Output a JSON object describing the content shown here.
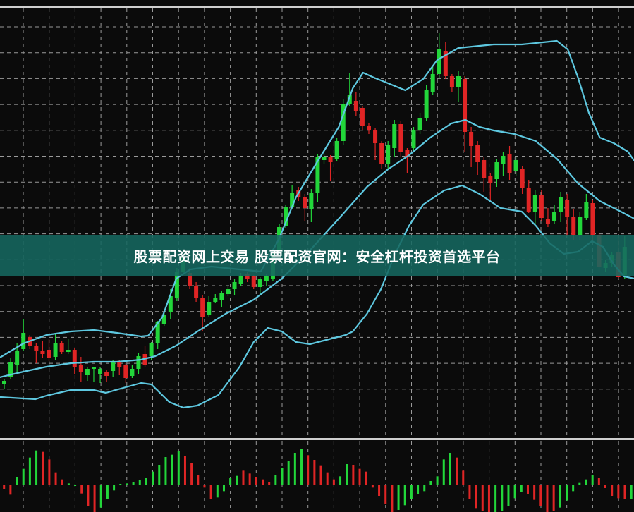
{
  "banner": {
    "text": "股票配资网上交易 股票配资官网：安全杠杆投资首选平台"
  },
  "colors": {
    "background": "#0b0b0b",
    "grid": "#9a9a9a",
    "up": "#22d63a",
    "down": "#e02525",
    "band": "#5ec8e0",
    "divider": "#cfcfcf",
    "banner": "#16685f"
  },
  "chart_data": [
    {
      "type": "candlestick",
      "title": "",
      "grid": true,
      "ohlc": [
        [
          5.5,
          6.2,
          4.9,
          6.0
        ],
        [
          6.5,
          9.2,
          6.2,
          8.7
        ],
        [
          8.3,
          11.3,
          7.2,
          10.3
        ],
        [
          10.5,
          14.7,
          10.3,
          12.8
        ],
        [
          12.2,
          12.5,
          10.5,
          11.0
        ],
        [
          11.0,
          11.3,
          8.5,
          10.2
        ],
        [
          10.2,
          11.7,
          9.2,
          9.8
        ],
        [
          10.4,
          11.9,
          8.8,
          9.2
        ],
        [
          9.4,
          12.6,
          9.0,
          11.3
        ],
        [
          11.4,
          11.7,
          9.8,
          10.1
        ],
        [
          10.1,
          12.0,
          9.8,
          10.4
        ],
        [
          10.4,
          10.7,
          7.0,
          8.0
        ],
        [
          8.3,
          9.4,
          5.8,
          7.2
        ],
        [
          6.8,
          8.0,
          6.0,
          7.7
        ],
        [
          7.7,
          8.0,
          5.8,
          7.9
        ],
        [
          7.0,
          8.0,
          5.7,
          7.7
        ],
        [
          7.3,
          7.6,
          5.8,
          6.7
        ],
        [
          7.4,
          9.0,
          6.5,
          8.7
        ],
        [
          8.7,
          9.0,
          6.8,
          8.0
        ],
        [
          8.3,
          8.5,
          5.7,
          6.4
        ],
        [
          6.7,
          8.2,
          6.4,
          7.7
        ],
        [
          7.7,
          10.0,
          7.0,
          9.5
        ],
        [
          9.8,
          11.0,
          8.0,
          8.3
        ],
        [
          9.5,
          11.5,
          9.0,
          11.3
        ],
        [
          11.3,
          14.5,
          10.5,
          14.3
        ],
        [
          14.0,
          16.0,
          13.8,
          15.3
        ],
        [
          15.7,
          19.0,
          14.7,
          18.0
        ],
        [
          17.7,
          22.0,
          17.3,
          21.5
        ],
        [
          21.5,
          24.0,
          21.2,
          23.5
        ],
        [
          21.3,
          22.0,
          19.0,
          19.5
        ],
        [
          19.5,
          20.0,
          17.2,
          17.7
        ],
        [
          17.8,
          18.2,
          13.0,
          15.0
        ],
        [
          15.3,
          18.0,
          15.0,
          17.2
        ],
        [
          17.2,
          18.3,
          17.0,
          17.8
        ],
        [
          17.5,
          18.8,
          16.5,
          18.4
        ],
        [
          18.3,
          19.5,
          18.0,
          19.0
        ],
        [
          19.0,
          20.5,
          18.2,
          20.0
        ],
        [
          19.7,
          21.3,
          19.4,
          20.8
        ],
        [
          21.2,
          21.5,
          20.0,
          20.5
        ],
        [
          20.8,
          21.0,
          19.0,
          19.3
        ],
        [
          19.3,
          20.7,
          18.2,
          20.5
        ],
        [
          20.2,
          21.2,
          19.5,
          20.8
        ],
        [
          20.5,
          24.5,
          20.2,
          24.0
        ],
        [
          24.3,
          28.2,
          24.0,
          27.8
        ],
        [
          28.0,
          31.0,
          27.7,
          30.7
        ],
        [
          30.7,
          33.8,
          30.4,
          32.7
        ],
        [
          33.0,
          33.5,
          31.5,
          32.0
        ],
        [
          32.0,
          32.5,
          28.7,
          30.5
        ],
        [
          30.3,
          33.2,
          28.5,
          32.7
        ],
        [
          32.7,
          38.2,
          31.3,
          37.7
        ],
        [
          37.3,
          38.2,
          36.8,
          37.8
        ],
        [
          37.8,
          38.0,
          34.3,
          37.0
        ],
        [
          37.5,
          40.5,
          37.2,
          40.0
        ],
        [
          40.0,
          46.0,
          39.5,
          45.3
        ],
        [
          45.3,
          49.7,
          45.0,
          46.5
        ],
        [
          45.7,
          47.0,
          43.5,
          44.3
        ],
        [
          44.7,
          45.0,
          41.5,
          42.2
        ],
        [
          42.1,
          42.5,
          41.0,
          41.5
        ],
        [
          41.5,
          41.8,
          37.3,
          39.7
        ],
        [
          39.7,
          40.0,
          36.0,
          36.7
        ],
        [
          36.7,
          40.0,
          36.0,
          39.4
        ],
        [
          39.0,
          43.0,
          37.8,
          42.4
        ],
        [
          42.4,
          42.8,
          37.8,
          38.5
        ],
        [
          38.8,
          39.0,
          35.5,
          37.8
        ],
        [
          39.0,
          42.0,
          38.5,
          41.5
        ],
        [
          41.5,
          44.0,
          41.0,
          43.3
        ],
        [
          43.3,
          48.0,
          42.8,
          47.3
        ],
        [
          47.0,
          50.7,
          46.5,
          49.5
        ],
        [
          49.5,
          55.3,
          49.0,
          53.1
        ],
        [
          52.7,
          54.0,
          48.8,
          49.2
        ],
        [
          49.2,
          49.5,
          47.0,
          47.7
        ],
        [
          47.7,
          50.0,
          45.5,
          49.2
        ],
        [
          48.8,
          49.2,
          38.5,
          41.3
        ],
        [
          41.3,
          42.0,
          36.3,
          39.3
        ],
        [
          39.5,
          40.0,
          35.2,
          37.0
        ],
        [
          37.3,
          37.8,
          32.8,
          34.8
        ],
        [
          35.0,
          35.5,
          31.5,
          34.0
        ],
        [
          34.6,
          37.5,
          33.5,
          37.0
        ],
        [
          36.7,
          38.5,
          35.0,
          37.9
        ],
        [
          38.2,
          39.3,
          34.5,
          35.5
        ],
        [
          35.7,
          37.8,
          35.0,
          37.3
        ],
        [
          36.1,
          36.4,
          32.5,
          33.3
        ],
        [
          33.3,
          34.5,
          29.8,
          30.0
        ],
        [
          30.0,
          33.0,
          28.0,
          32.4
        ],
        [
          32.4,
          33.0,
          28.6,
          29.1
        ],
        [
          29.0,
          30.5,
          27.8,
          28.3
        ],
        [
          28.7,
          31.0,
          28.2,
          29.9
        ],
        [
          30.0,
          32.8,
          28.5,
          32.0
        ],
        [
          31.7,
          32.5,
          26.5,
          29.3
        ],
        [
          29.3,
          30.3,
          26.0,
          26.7
        ],
        [
          26.7,
          30.0,
          26.0,
          29.3
        ],
        [
          29.1,
          32.5,
          28.8,
          31.4
        ],
        [
          31.2,
          31.7,
          25.5,
          26.7
        ],
        [
          26.7,
          27.0,
          21.5,
          22.2
        ],
        [
          22.0,
          23.2,
          21.5,
          22.7
        ],
        [
          22.7,
          24.2,
          22.2,
          23.8
        ],
        [
          24.2,
          26.5,
          20.4,
          20.7
        ],
        [
          21.0,
          26.5,
          20.5,
          25.0
        ]
      ],
      "bands": {
        "upper": [
          [
            -0.7,
            9.3
          ],
          [
            3.0,
            11.3
          ],
          [
            6.6,
            12.5
          ],
          [
            10.4,
            13.0
          ],
          [
            14.0,
            13.2
          ],
          [
            17.6,
            12.8
          ],
          [
            21.4,
            12.3
          ],
          [
            22.5,
            12.4
          ],
          [
            24.7,
            15.0
          ],
          [
            26.9,
            20.5
          ],
          [
            29.1,
            21.8
          ],
          [
            32.4,
            22.2
          ],
          [
            36.8,
            21.8
          ],
          [
            40.1,
            21.5
          ],
          [
            42.9,
            26.0
          ],
          [
            45.6,
            32.0
          ],
          [
            48.9,
            37.0
          ],
          [
            52.3,
            42.0
          ],
          [
            54.5,
            47.5
          ],
          [
            56.1,
            49.7
          ],
          [
            57.8,
            49.0
          ],
          [
            60.0,
            48.2
          ],
          [
            62.7,
            47.2
          ],
          [
            65.5,
            48.8
          ],
          [
            67.7,
            51.5
          ],
          [
            71.0,
            53.2
          ],
          [
            76.5,
            53.7
          ],
          [
            80.9,
            53.7
          ],
          [
            84.2,
            54.0
          ],
          [
            86.4,
            54.2
          ],
          [
            88.1,
            53.0
          ],
          [
            89.7,
            49.0
          ],
          [
            91.4,
            44.0
          ],
          [
            93.1,
            40.5
          ],
          [
            95.3,
            39.7
          ],
          [
            97.5,
            38.5
          ],
          [
            98.5,
            37.2
          ]
        ],
        "middle": [
          [
            -0.7,
            6.5
          ],
          [
            3.0,
            7.3
          ],
          [
            6.6,
            8.0
          ],
          [
            10.4,
            8.5
          ],
          [
            14.0,
            8.7
          ],
          [
            17.6,
            8.7
          ],
          [
            21.4,
            9.0
          ],
          [
            23.6,
            9.5
          ],
          [
            26.9,
            11.0
          ],
          [
            30.2,
            13.0
          ],
          [
            34.6,
            15.5
          ],
          [
            39.0,
            17.5
          ],
          [
            43.4,
            20.5
          ],
          [
            47.8,
            24.5
          ],
          [
            52.3,
            29.0
          ],
          [
            56.7,
            33.5
          ],
          [
            60.0,
            36.0
          ],
          [
            63.3,
            38.0
          ],
          [
            66.6,
            40.5
          ],
          [
            69.9,
            42.5
          ],
          [
            72.1,
            43.0
          ],
          [
            74.3,
            42.0
          ],
          [
            76.5,
            41.5
          ],
          [
            79.8,
            41.0
          ],
          [
            83.1,
            40.0
          ],
          [
            86.4,
            37.5
          ],
          [
            89.7,
            34.0
          ],
          [
            93.1,
            31.5
          ],
          [
            96.4,
            30.0
          ],
          [
            98.5,
            29.0
          ]
        ],
        "lower": [
          [
            -0.7,
            3.7
          ],
          [
            3.0,
            3.5
          ],
          [
            4.9,
            3.4
          ],
          [
            6.6,
            3.9
          ],
          [
            10.4,
            4.7
          ],
          [
            14.0,
            4.7
          ],
          [
            15.9,
            4.3
          ],
          [
            18.6,
            5.0
          ],
          [
            21.4,
            5.7
          ],
          [
            23.0,
            5.5
          ],
          [
            25.8,
            3.0
          ],
          [
            28.0,
            2.2
          ],
          [
            30.2,
            2.5
          ],
          [
            33.5,
            4.0
          ],
          [
            36.8,
            8.0
          ],
          [
            39.0,
            11.5
          ],
          [
            41.2,
            13.5
          ],
          [
            43.4,
            13.0
          ],
          [
            45.6,
            11.5
          ],
          [
            47.8,
            11.2
          ],
          [
            51.2,
            12.0
          ],
          [
            53.4,
            12.5
          ],
          [
            54.5,
            13.0
          ],
          [
            56.7,
            15.5
          ],
          [
            58.9,
            19.0
          ],
          [
            61.1,
            24.0
          ],
          [
            63.3,
            28.0
          ],
          [
            65.5,
            31.0
          ],
          [
            68.8,
            33.0
          ],
          [
            71.6,
            33.7
          ],
          [
            74.3,
            32.5
          ],
          [
            77.6,
            30.5
          ],
          [
            80.9,
            30.0
          ],
          [
            83.1,
            28.0
          ],
          [
            85.3,
            25.5
          ],
          [
            87.5,
            24.0
          ],
          [
            89.7,
            24.3
          ],
          [
            91.9,
            25.8
          ],
          [
            93.6,
            25.0
          ],
          [
            95.3,
            22.5
          ],
          [
            96.9,
            20.8
          ],
          [
            98.5,
            20.5
          ]
        ]
      }
    },
    {
      "type": "bar",
      "title": "",
      "grid": true,
      "values": [
        -0.15,
        -0.4,
        0.35,
        0.7,
        1.18,
        1.48,
        1.42,
        1.1,
        0.55,
        0.25,
        0.08,
        0,
        -0.35,
        -0.9,
        -1.15,
        -0.95,
        -0.6,
        -0.22,
        0.05,
        0.08,
        0.15,
        0.22,
        0.3,
        0.58,
        0.85,
        1.2,
        1.3,
        1.45,
        1.25,
        0.95,
        0.42,
        -0.1,
        -0.6,
        -0.52,
        -0.25,
        0.3,
        0.4,
        0.62,
        0.5,
        0.35,
        0.25,
        0.15,
        0.42,
        0.75,
        1.05,
        1.35,
        1.55,
        1.28,
        1.08,
        0.82,
        0.55,
        0.25,
        0.38,
        0.9,
        0.85,
        0.7,
        0.58,
        -0.1,
        -0.45,
        -0.8,
        -1.15,
        -1.05,
        -0.85,
        -0.6,
        -0.38,
        -0.25,
        0.18,
        0.38,
        1.1,
        1.38,
        1.18,
        0.62,
        -0.6,
        -1.0,
        -1.1,
        -1.15,
        -1.15,
        -1.08,
        -0.9,
        -0.55,
        -0.3,
        -0.38,
        -0.62,
        -0.9,
        -1.15,
        -1.1,
        -0.95,
        -0.65,
        -0.25,
        0.1,
        0.25,
        0.45,
        0.3,
        -0.12,
        -0.45,
        -0.55,
        -0.6,
        -0.58
      ],
      "bar_colors": "rrggggrrrrggrrrgggggggggggggrrrrrggggrrrrrgggggrrrrrggrrrrrrrgggggggggrrrrrrgggggrrrrrggggggrrrrrg"
    }
  ]
}
